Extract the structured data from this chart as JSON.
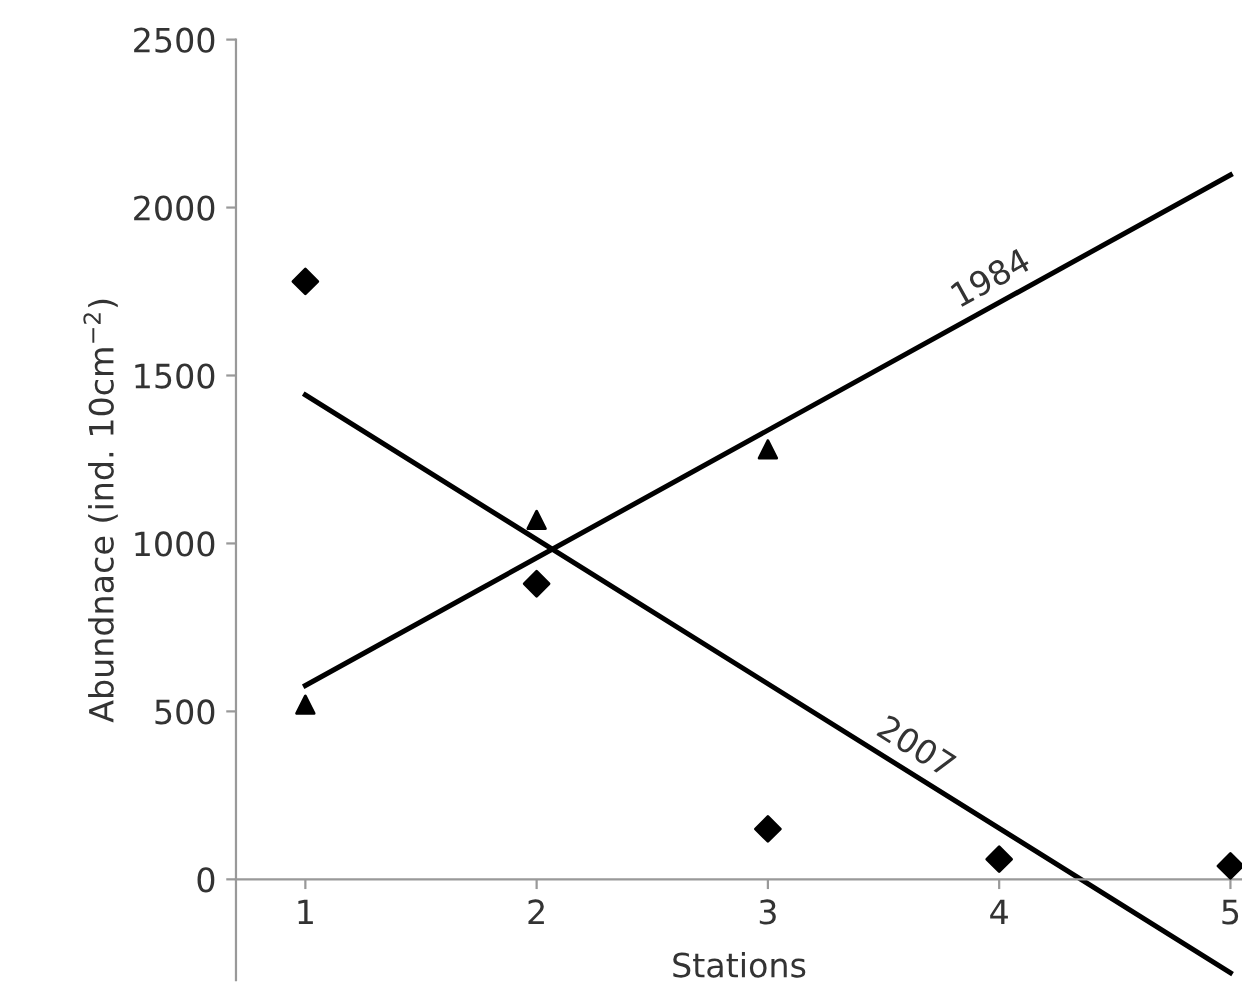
{
  "chart_data": {
    "type": "scatter",
    "xlabel": "Stations",
    "ylabel": "Abundnace (ind. 10cm$^{−2}$)",
    "xlim": [
      0.7,
      5.05
    ],
    "ylim": [
      -300,
      2500
    ],
    "xticks": [
      1,
      2,
      3,
      4,
      5
    ],
    "yticks": [
      0,
      500,
      1000,
      1500,
      2000,
      2500
    ],
    "grid": false,
    "legend": false,
    "series": [
      {
        "marker": "triangle",
        "color": "#000000",
        "x": [
          1,
          2,
          3
        ],
        "values": [
          520,
          1070,
          1280
        ]
      },
      {
        "marker": "diamond",
        "color": "#000000",
        "x": [
          1,
          2,
          3,
          4,
          5
        ],
        "values": [
          1780,
          880,
          150,
          60,
          40
        ]
      },
      {
        "type": "line",
        "marker": "none",
        "color": "#000000",
        "x": [
          1,
          5
        ],
        "values": [
          577,
          2097
        ]
      },
      {
        "type": "line",
        "marker": "none",
        "color": "#000000",
        "x": [
          1,
          5
        ],
        "values": [
          1442,
          -278
        ]
      }
    ],
    "annotations": [
      {
        "text": "1984",
        "x": 4.0,
        "y": 1717
      },
      {
        "text": "2007",
        "x": 3.6,
        "y": 324
      }
    ]
  }
}
